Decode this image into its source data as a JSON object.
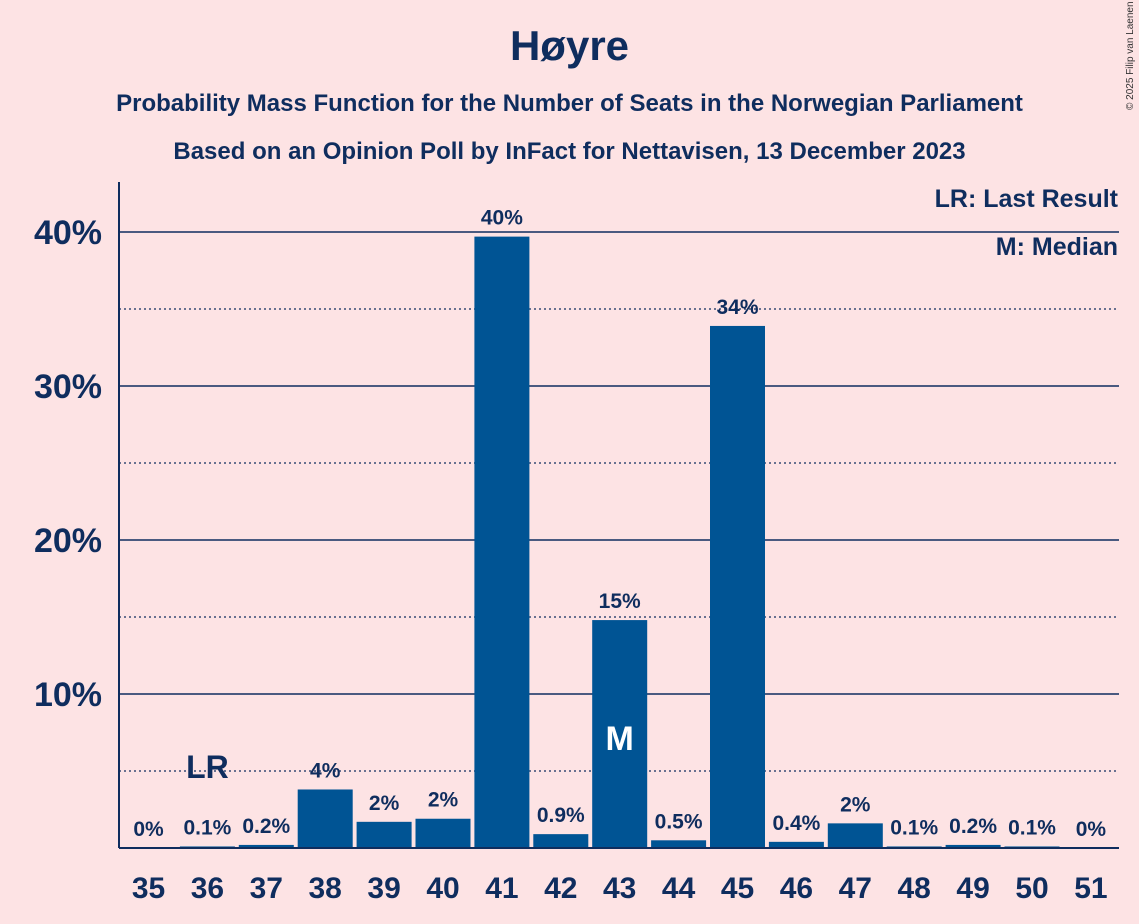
{
  "chart_data": {
    "type": "bar",
    "title": "Høyre",
    "subtitle1": "Probability Mass Function for the Number of Seats in the Norwegian Parliament",
    "subtitle2": "Based on an Opinion Poll by InFact for Nettavisen, 13 December 2023",
    "copyright": "© 2025 Filip van Laenen",
    "legend": [
      "LR: Last Result",
      "M: Median"
    ],
    "categories": [
      "35",
      "36",
      "37",
      "38",
      "39",
      "40",
      "41",
      "42",
      "43",
      "44",
      "45",
      "46",
      "47",
      "48",
      "49",
      "50",
      "51"
    ],
    "values": [
      0,
      0.1,
      0.2,
      3.8,
      1.7,
      1.9,
      39.7,
      0.9,
      14.8,
      0.5,
      33.9,
      0.4,
      1.6,
      0.1,
      0.2,
      0.1,
      0
    ],
    "value_labels": [
      "0%",
      "0.1%",
      "0.2%",
      "4%",
      "2%",
      "2%",
      "40%",
      "0.9%",
      "15%",
      "0.5%",
      "34%",
      "0.4%",
      "2%",
      "0.1%",
      "0.2%",
      "0.1%",
      "0%"
    ],
    "ylim": [
      0,
      43
    ],
    "y_ticks": [
      10,
      20,
      30,
      40
    ],
    "y_tick_labels": [
      "10%",
      "20%",
      "30%",
      "40%"
    ],
    "y_dotted_gridlines": [
      5,
      15,
      25,
      35
    ],
    "last_result": {
      "category": "36",
      "label": "LR"
    },
    "median": {
      "category": "43",
      "label": "M"
    },
    "bar_color": "#005494",
    "text_color": "#0f2d5e",
    "background": "#fde3e4"
  }
}
